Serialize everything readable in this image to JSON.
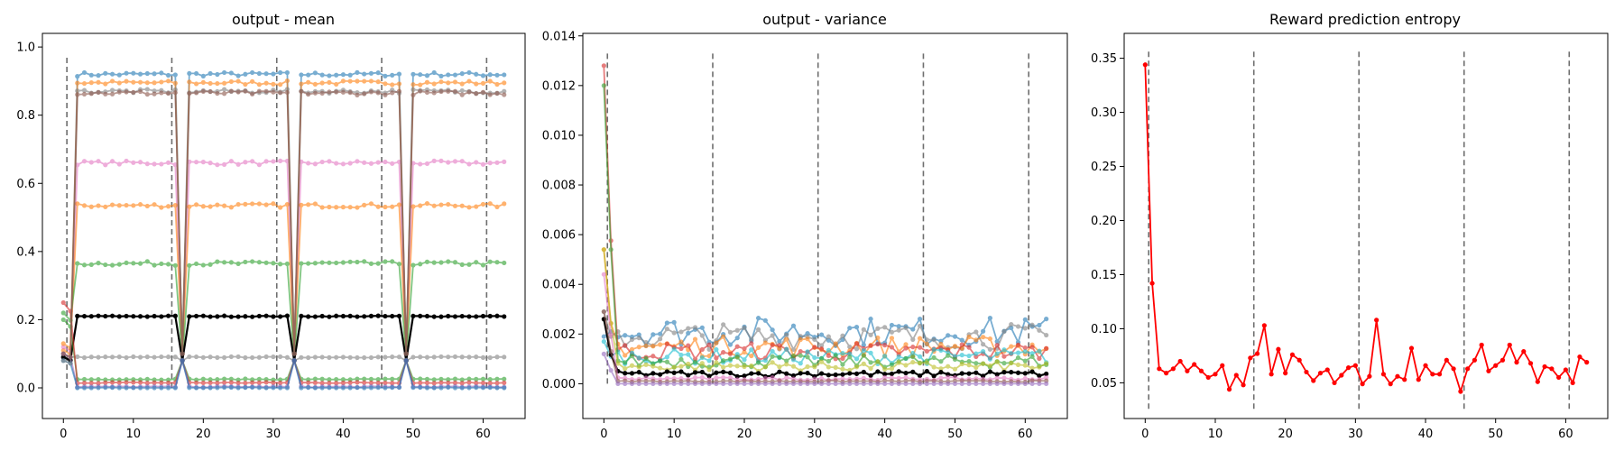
{
  "chart_data": [
    {
      "type": "line",
      "title": "output - mean",
      "xlabel": "",
      "ylabel": "",
      "xlim": [
        -3,
        66
      ],
      "ylim": [
        -0.09,
        1.04
      ],
      "xticks": [
        0,
        10,
        20,
        30,
        40,
        50,
        60
      ],
      "xtick_labels": [
        "0",
        "10",
        "20",
        "30",
        "40",
        "50",
        "60"
      ],
      "yticks": [
        0.0,
        0.2,
        0.4,
        0.6,
        0.8,
        1.0
      ],
      "ytick_labels": [
        "0.0",
        "0.2",
        "0.4",
        "0.6",
        "0.8",
        "1.0"
      ],
      "vlines": [
        0.5,
        15.5,
        30.5,
        45.5,
        60.5
      ],
      "vline_range": [
        0,
        0.97
      ],
      "drop_indices": [
        0,
        17,
        33,
        49
      ],
      "series_plateau": [
        {
          "color": "#1f77b4",
          "plateau": 0.92,
          "start": 0.09
        },
        {
          "color": "#ff7f0e",
          "plateau": 0.895,
          "start": 0.11
        },
        {
          "color": "#e377c2",
          "plateau": 0.66,
          "start": 0.12
        },
        {
          "color": "#ff7f0e",
          "plateau": 0.535,
          "start": 0.13
        },
        {
          "color": "#2ca02c",
          "plateau": 0.365,
          "start": 0.22
        },
        {
          "color": "#000000",
          "plateau": 0.21,
          "start": 0.09
        },
        {
          "color": "#7f7f7f",
          "plateau": 0.09,
          "start": 0.1
        },
        {
          "color": "#2ca02c",
          "plateau": 0.025,
          "start": 0.2
        },
        {
          "color": "#d62728",
          "plateau": 0.015,
          "start": 0.25
        },
        {
          "color": "#9467bd",
          "plateau": 0.003,
          "start": 0.1
        },
        {
          "color": "#1f77b4",
          "plateau": 0.0,
          "start": 0.08
        },
        {
          "color": "#7f7f7f",
          "plateau": 0.87,
          "start": 0.08
        },
        {
          "color": "#8c564b",
          "plateau": 0.865,
          "start": 0.1
        }
      ]
    },
    {
      "type": "line",
      "title": "output - variance",
      "xlabel": "",
      "ylabel": "",
      "xlim": [
        -3,
        66
      ],
      "ylim": [
        -0.0014,
        0.0141
      ],
      "xticks": [
        0,
        10,
        20,
        30,
        40,
        50,
        60
      ],
      "xtick_labels": [
        "0",
        "10",
        "20",
        "30",
        "40",
        "50",
        "60"
      ],
      "yticks": [
        0.0,
        0.002,
        0.004,
        0.006,
        0.008,
        0.01,
        0.012,
        0.014
      ],
      "ytick_labels": [
        "0.000",
        "0.002",
        "0.004",
        "0.006",
        "0.008",
        "0.010",
        "0.012",
        "0.014"
      ],
      "vlines": [
        0.5,
        15.5,
        30.5,
        45.5,
        60.5
      ],
      "vline_range": [
        0,
        0.0133
      ],
      "series_level": [
        {
          "color": "#1f77b4",
          "start": 0.0019,
          "level": 0.0021
        },
        {
          "color": "#7f7f7f",
          "start": 0.0029,
          "level": 0.0019
        },
        {
          "color": "#ff7f0e",
          "start": 0.0054,
          "level": 0.0015
        },
        {
          "color": "#d62728",
          "start": 0.0128,
          "level": 0.0013
        },
        {
          "color": "#17becf",
          "start": 0.0017,
          "level": 0.0011
        },
        {
          "color": "#2ca02c",
          "start": 0.012,
          "level": 0.0009
        },
        {
          "color": "#bcbd22",
          "start": 0.0054,
          "level": 0.0007
        },
        {
          "color": "#000000",
          "start": 0.0026,
          "level": 0.0004
        },
        {
          "color": "#e377c2",
          "start": 0.0044,
          "level": 0.0002
        },
        {
          "color": "#8c564b",
          "start": 0.0029,
          "level": 0.0001
        },
        {
          "color": "#9467bd",
          "start": 0.0012,
          "level": 0.0
        }
      ]
    },
    {
      "type": "line",
      "title": "Reward prediction entropy",
      "xlabel": "",
      "ylabel": "",
      "xlim": [
        -3,
        66
      ],
      "ylim": [
        0.017,
        0.373
      ],
      "xticks": [
        0,
        10,
        20,
        30,
        40,
        50,
        60
      ],
      "xtick_labels": [
        "0",
        "10",
        "20",
        "30",
        "40",
        "50",
        "60"
      ],
      "yticks": [
        0.05,
        0.1,
        0.15,
        0.2,
        0.25,
        0.3,
        0.35
      ],
      "ytick_labels": [
        "0.05",
        "0.10",
        "0.15",
        "0.20",
        "0.25",
        "0.30",
        "0.35"
      ],
      "vlines": [
        0.5,
        15.5,
        30.5,
        45.5,
        60.5
      ],
      "vline_range": [
        0.026,
        0.357
      ],
      "series": [
        {
          "color": "#ff0000",
          "x": [
            0,
            1,
            2,
            3,
            4,
            5,
            6,
            7,
            8,
            9,
            10,
            11,
            12,
            13,
            14,
            15,
            16,
            17,
            18,
            19,
            20,
            21,
            22,
            23,
            24,
            25,
            26,
            27,
            28,
            29,
            30,
            31,
            32,
            33,
            34,
            35,
            36,
            37,
            38,
            39,
            40,
            41,
            42,
            43,
            44,
            45,
            46,
            47,
            48,
            49,
            50,
            51,
            52,
            53,
            54,
            55,
            56,
            57,
            58,
            59,
            60,
            61,
            62,
            63
          ],
          "values": [
            0.344,
            0.142,
            0.063,
            0.059,
            0.063,
            0.07,
            0.061,
            0.067,
            0.061,
            0.055,
            0.058,
            0.066,
            0.044,
            0.057,
            0.048,
            0.073,
            0.077,
            0.103,
            0.058,
            0.081,
            0.059,
            0.076,
            0.071,
            0.06,
            0.052,
            0.059,
            0.062,
            0.05,
            0.057,
            0.064,
            0.066,
            0.049,
            0.056,
            0.108,
            0.058,
            0.049,
            0.056,
            0.053,
            0.082,
            0.053,
            0.066,
            0.058,
            0.058,
            0.071,
            0.063,
            0.042,
            0.063,
            0.071,
            0.085,
            0.061,
            0.066,
            0.071,
            0.085,
            0.069,
            0.079,
            0.068,
            0.051,
            0.065,
            0.063,
            0.055,
            0.062,
            0.05,
            0.074,
            0.069
          ]
        }
      ]
    }
  ]
}
